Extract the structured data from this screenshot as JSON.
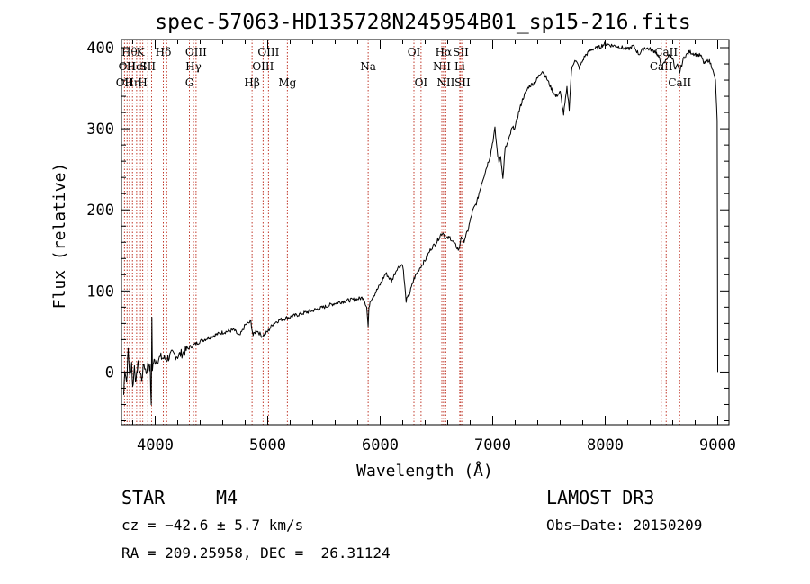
{
  "chart_data": {
    "type": "line",
    "title": "spec-57063-HD135728N245954B01_sp15-216.fits",
    "xlabel": "Wavelength (Å)",
    "ylabel": "Flux (relative)",
    "xlim": [
      3700,
      9100
    ],
    "ylim": [
      -65,
      410
    ],
    "xticks": [
      4000,
      5000,
      6000,
      7000,
      8000,
      9000
    ],
    "yticks": [
      0,
      100,
      200,
      300,
      400
    ],
    "series": [
      {
        "name": "flux",
        "x": [
          3720,
          3730,
          3745,
          3760,
          3775,
          3790,
          3800,
          3815,
          3830,
          3845,
          3860,
          3880,
          3900,
          3920,
          3940,
          3955,
          3965,
          3970,
          3975,
          3985,
          4000,
          4050,
          4100,
          4150,
          4200,
          4250,
          4300,
          4350,
          4400,
          4500,
          4600,
          4700,
          4750,
          4800,
          4850,
          4870,
          4900,
          4950,
          5000,
          5050,
          5100,
          5150,
          5200,
          5300,
          5400,
          5500,
          5600,
          5700,
          5800,
          5850,
          5880,
          5893,
          5900,
          5910,
          5950,
          6000,
          6050,
          6100,
          6150,
          6200,
          6230,
          6260,
          6300,
          6350,
          6400,
          6450,
          6500,
          6540,
          6563,
          6580,
          6620,
          6660,
          6700,
          6720,
          6740,
          6780,
          6820,
          6860,
          6900,
          6940,
          6980,
          7020,
          7040,
          7055,
          7070,
          7090,
          7110,
          7140,
          7170,
          7200,
          7230,
          7270,
          7320,
          7380,
          7440,
          7480,
          7520,
          7560,
          7600,
          7630,
          7660,
          7680,
          7700,
          7730,
          7770,
          7820,
          7880,
          7940,
          8000,
          8050,
          8100,
          8150,
          8200,
          8250,
          8300,
          8350,
          8400,
          8450,
          8480,
          8500,
          8530,
          8560,
          8600,
          8620,
          8642,
          8662,
          8700,
          8750,
          8800,
          8850,
          8880,
          8920,
          8950,
          8980,
          8995,
          9000
        ],
        "values": [
          -28,
          5,
          -12,
          28,
          -8,
          12,
          -20,
          8,
          -14,
          12,
          2,
          -8,
          10,
          0,
          12,
          4,
          -45,
          68,
          5,
          12,
          14,
          18,
          16,
          22,
          20,
          24,
          30,
          34,
          38,
          44,
          49,
          52,
          44,
          58,
          62,
          45,
          52,
          44,
          50,
          60,
          64,
          66,
          68,
          72,
          76,
          80,
          85,
          88,
          90,
          92,
          80,
          56,
          78,
          88,
          96,
          108,
          122,
          112,
          128,
          133,
          88,
          96,
          115,
          128,
          138,
          152,
          160,
          170,
          172,
          164,
          166,
          158,
          150,
          168,
          160,
          175,
          198,
          210,
          232,
          250,
          268,
          300,
          272,
          258,
          268,
          238,
          275,
          285,
          300,
          302,
          320,
          338,
          352,
          358,
          372,
          362,
          350,
          340,
          345,
          318,
          350,
          325,
          372,
          386,
          375,
          390,
          398,
          400,
          405,
          403,
          402,
          400,
          398,
          402,
          392,
          400,
          398,
          395,
          387,
          375,
          382,
          390,
          388,
          372,
          378,
          370,
          388,
          395,
          392,
          390,
          380,
          385,
          376,
          360,
          310,
          0
        ]
      }
    ],
    "lines": [
      {
        "wl": 3727,
        "label": "OII",
        "row": 3
      },
      {
        "wl": 3750,
        "label": "OII",
        "row": 2
      },
      {
        "wl": 3771,
        "label": "Hθ",
        "row": 1
      },
      {
        "wl": 3798,
        "label": "Hη",
        "row": 3
      },
      {
        "wl": 3835,
        "label": "HeI",
        "row": 2
      },
      {
        "wl": 3869,
        "label": "K",
        "row": 1
      },
      {
        "wl": 3889,
        "label": "H",
        "row": 3
      },
      {
        "wl": 3934,
        "label": "SII",
        "row": 2
      },
      {
        "wl": 3968,
        "label": "",
        "row": 0
      },
      {
        "wl": 4072,
        "label": "Hδ",
        "row": 1
      },
      {
        "wl": 4102,
        "label": "",
        "row": 0
      },
      {
        "wl": 4304,
        "label": "G",
        "row": 3
      },
      {
        "wl": 4340,
        "label": "Hγ",
        "row": 2
      },
      {
        "wl": 4363,
        "label": "OIII",
        "row": 1
      },
      {
        "wl": 4861,
        "label": "Hβ",
        "row": 3
      },
      {
        "wl": 4959,
        "label": "OIII",
        "row": 2
      },
      {
        "wl": 5007,
        "label": "OIII",
        "row": 1
      },
      {
        "wl": 5175,
        "label": "Mg",
        "row": 3
      },
      {
        "wl": 5893,
        "label": "Na",
        "row": 2
      },
      {
        "wl": 6300,
        "label": "OI",
        "row": 1
      },
      {
        "wl": 6363,
        "label": "OI",
        "row": 3
      },
      {
        "wl": 6548,
        "label": "NII",
        "row": 2
      },
      {
        "wl": 6563,
        "label": "Hα",
        "row": 1
      },
      {
        "wl": 6583,
        "label": "NII",
        "row": 3
      },
      {
        "wl": 6707,
        "label": "Li",
        "row": 2
      },
      {
        "wl": 6716,
        "label": "SII",
        "row": 1
      },
      {
        "wl": 6731,
        "label": "SII",
        "row": 3
      },
      {
        "wl": 8498,
        "label": "CaII",
        "row": 2
      },
      {
        "wl": 8542,
        "label": "CaII",
        "row": 1
      },
      {
        "wl": 8662,
        "label": "CaII",
        "row": 3
      }
    ]
  },
  "info": {
    "obj_class": "STAR",
    "subclass": "M4",
    "survey": "LAMOST DR3",
    "cz": "cz = −42.6 ± 5.7 km/s",
    "obs_date": "Obs−Date: 20150209",
    "radec": "RA = 209.25958, DEC =  26.31124"
  }
}
